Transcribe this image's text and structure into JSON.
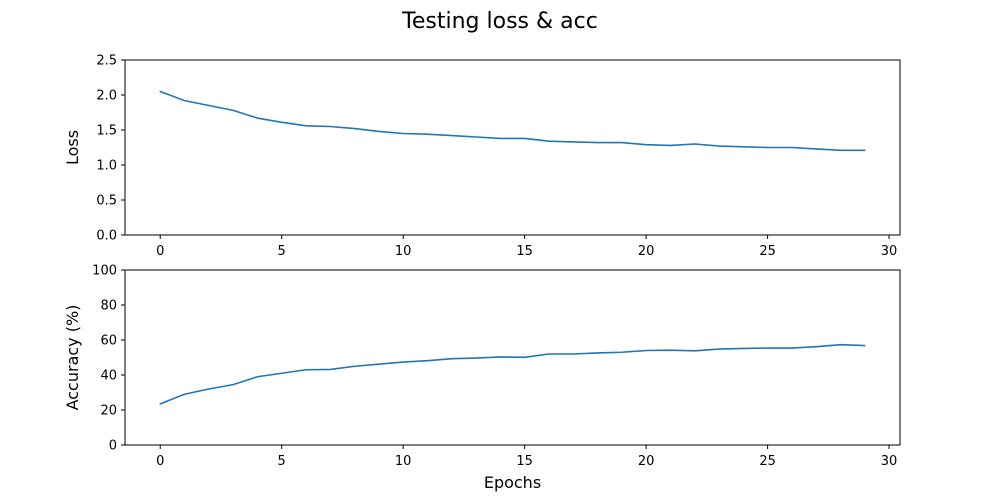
{
  "figure": {
    "title": "Testing loss & acc"
  },
  "chart_data": [
    {
      "type": "line",
      "ylabel": "Loss",
      "xlabel": "",
      "xlim": [
        -1.45,
        30.45
      ],
      "ylim": [
        0,
        2.5
      ],
      "xticks": [
        0,
        5,
        10,
        15,
        20,
        25,
        30
      ],
      "yticks": [
        0.0,
        0.5,
        1.0,
        1.5,
        2.0,
        2.5
      ],
      "ytick_labels": [
        "0.0",
        "0.5",
        "1.0",
        "1.5",
        "2.0",
        "2.5"
      ],
      "grid": false,
      "color": "#1f77b4",
      "x": [
        0,
        1,
        2,
        3,
        4,
        5,
        6,
        7,
        8,
        9,
        10,
        11,
        12,
        13,
        14,
        15,
        16,
        17,
        18,
        19,
        20,
        21,
        22,
        23,
        24,
        25,
        26,
        27,
        28,
        29
      ],
      "values": [
        2.05,
        1.92,
        1.85,
        1.78,
        1.67,
        1.61,
        1.56,
        1.55,
        1.52,
        1.48,
        1.45,
        1.44,
        1.42,
        1.4,
        1.38,
        1.38,
        1.34,
        1.33,
        1.32,
        1.32,
        1.29,
        1.28,
        1.3,
        1.27,
        1.26,
        1.25,
        1.25,
        1.23,
        1.21,
        1.21
      ]
    },
    {
      "type": "line",
      "ylabel": "Accuracy (%)",
      "xlabel": "Epochs",
      "xlim": [
        -1.45,
        30.45
      ],
      "ylim": [
        0,
        100
      ],
      "xticks": [
        0,
        5,
        10,
        15,
        20,
        25,
        30
      ],
      "yticks": [
        0,
        20,
        40,
        60,
        80,
        100
      ],
      "ytick_labels": [
        "0",
        "20",
        "40",
        "60",
        "80",
        "100"
      ],
      "grid": false,
      "color": "#1f77b4",
      "x": [
        0,
        1,
        2,
        3,
        4,
        5,
        6,
        7,
        8,
        9,
        10,
        11,
        12,
        13,
        14,
        15,
        16,
        17,
        18,
        19,
        20,
        21,
        22,
        23,
        24,
        25,
        26,
        27,
        28,
        29
      ],
      "values": [
        23.5,
        29,
        32,
        34.5,
        39,
        41,
        43,
        43.2,
        45,
        46.2,
        47.4,
        48.2,
        49.3,
        49.7,
        50.3,
        50.1,
        52,
        52,
        52.6,
        53,
        54,
        54.2,
        53.8,
        54.8,
        55.2,
        55.4,
        55.4,
        56.2,
        57.3,
        56.8
      ]
    }
  ]
}
